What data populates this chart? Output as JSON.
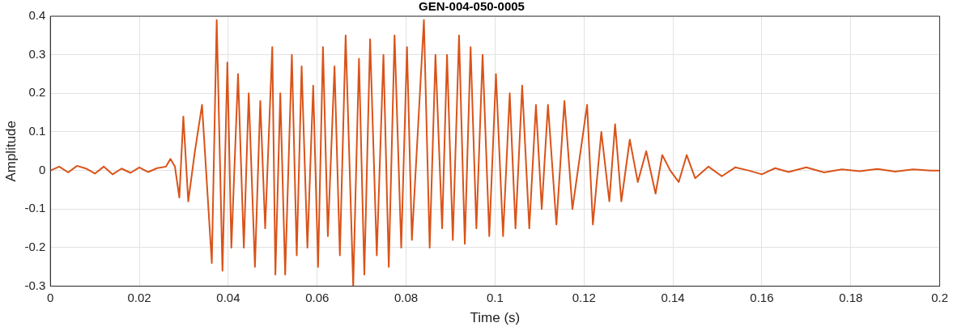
{
  "chart_data": {
    "type": "line",
    "title": "GEN-004-050-0005",
    "xlabel": "Time (s)",
    "ylabel": "Amplitude",
    "x": [
      0,
      0.002,
      0.004,
      0.006,
      0.008,
      0.01,
      0.012,
      0.014,
      0.016,
      0.018,
      0.02,
      0.022,
      0.024,
      0.026,
      0.027,
      0.028,
      0.029,
      0.0299,
      0.031,
      0.0325,
      0.0341,
      0.0363,
      0.0374,
      0.0387,
      0.0398,
      0.0407,
      0.0422,
      0.0435,
      0.0446,
      0.046,
      0.0472,
      0.0483,
      0.0499,
      0.0506,
      0.0517,
      0.0528,
      0.0543,
      0.0554,
      0.0565,
      0.0578,
      0.0591,
      0.0602,
      0.0613,
      0.0624,
      0.0639,
      0.0651,
      0.0664,
      0.0681,
      0.0694,
      0.0706,
      0.0719,
      0.0734,
      0.0749,
      0.0761,
      0.0774,
      0.0789,
      0.0802,
      0.0813,
      0.084,
      0.0853,
      0.0866,
      0.0881,
      0.0892,
      0.0905,
      0.0919,
      0.0932,
      0.0945,
      0.0958,
      0.0972,
      0.0987,
      0.1002,
      0.1018,
      0.1033,
      0.1046,
      0.1061,
      0.1077,
      0.1092,
      0.1105,
      0.1119,
      0.1138,
      0.1156,
      0.1174,
      0.1207,
      0.122,
      0.1239,
      0.1257,
      0.127,
      0.1284,
      0.1303,
      0.1321,
      0.134,
      0.1361,
      0.1376,
      0.1394,
      0.1413,
      0.1431,
      0.145,
      0.148,
      0.151,
      0.154,
      0.157,
      0.16,
      0.163,
      0.166,
      0.17,
      0.174,
      0.178,
      0.182,
      0.186,
      0.19,
      0.194,
      0.198,
      0.2
    ],
    "values": [
      0,
      0.01,
      -0.005,
      0.012,
      0.005,
      -0.008,
      0.01,
      -0.01,
      0.005,
      -0.006,
      0.008,
      -0.004,
      0.006,
      0.01,
      0.03,
      0.01,
      -0.07,
      0.14,
      -0.08,
      0.05,
      0.17,
      -0.24,
      0.39,
      -0.26,
      0.28,
      -0.2,
      0.25,
      -0.2,
      0.2,
      -0.25,
      0.18,
      -0.15,
      0.32,
      -0.27,
      0.2,
      -0.27,
      0.3,
      -0.22,
      0.27,
      -0.2,
      0.22,
      -0.25,
      0.32,
      -0.17,
      0.27,
      -0.22,
      0.35,
      -0.3,
      0.29,
      -0.27,
      0.34,
      -0.22,
      0.3,
      -0.25,
      0.35,
      -0.2,
      0.32,
      -0.18,
      0.39,
      -0.2,
      0.3,
      -0.15,
      0.3,
      -0.18,
      0.35,
      -0.19,
      0.32,
      -0.15,
      0.3,
      -0.17,
      0.25,
      -0.17,
      0.2,
      -0.15,
      0.22,
      -0.15,
      0.17,
      -0.1,
      0.17,
      -0.14,
      0.18,
      -0.1,
      0.17,
      -0.14,
      0.1,
      -0.08,
      0.12,
      -0.08,
      0.08,
      -0.03,
      0.05,
      -0.06,
      0.04,
      0,
      -0.03,
      0.04,
      -0.02,
      0.01,
      -0.015,
      0.008,
      0,
      -0.01,
      0.006,
      -0.004,
      0.008,
      -0.005,
      0.003,
      -0.002,
      0.004,
      -0.003,
      0.003,
      0,
      0
    ],
    "color": "#d95319",
    "xlim": [
      0,
      0.2
    ],
    "xticks": [
      0,
      0.02,
      0.04,
      0.06,
      0.08,
      0.1,
      0.12,
      0.14,
      0.16,
      0.18,
      0.2
    ],
    "ylim": [
      -0.3,
      0.4
    ],
    "yticks": [
      -0.3,
      -0.2,
      -0.1,
      0,
      0.1,
      0.2,
      0.3,
      0.4
    ],
    "grid": true,
    "legend": false
  }
}
